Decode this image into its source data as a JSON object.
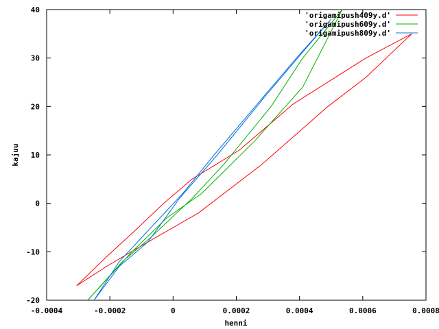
{
  "chart_data": {
    "type": "line",
    "xlabel": "henni",
    "ylabel": "kajuu",
    "xlim": [
      -0.0004,
      0.0008
    ],
    "ylim": [
      -20,
      40
    ],
    "xticks": [
      -0.0004,
      -0.0002,
      0,
      0.0002,
      0.0004,
      0.0006,
      0.0008
    ],
    "xtick_labels": [
      "-0.0004",
      "-0.0002",
      "0",
      "0.0002",
      "0.0004",
      "0.0006",
      "0.0008"
    ],
    "yticks": [
      -20,
      -10,
      0,
      10,
      20,
      30,
      40
    ],
    "ytick_labels": [
      "-20",
      "-10",
      "0",
      "10",
      "20",
      "30",
      "40"
    ],
    "grid": false,
    "legend_position": "top-right",
    "series": [
      {
        "name": "'origamipush409y.d'",
        "color": "#ff0000",
        "x": [
          -0.000305,
          -0.00021,
          -0.00011,
          -3e-05,
          6e-05,
          0.00021,
          0.00038,
          0.00061,
          0.000755,
          0.00061,
          0.00049,
          0.00028,
          8e-05,
          -8e-05,
          -0.00021,
          -0.000305
        ],
        "y": [
          -17,
          -11,
          -5,
          0,
          5,
          11,
          20.5,
          30,
          35,
          26,
          20,
          8,
          -2,
          -8,
          -13,
          -17
        ]
      },
      {
        "name": "'origamipush609y.d'",
        "color": "#00b000",
        "x": [
          -0.00027,
          -0.00016,
          -7e-05,
          6e-05,
          0.00016,
          0.00031,
          0.00041,
          0.000535,
          0.00041,
          0.00026,
          9e-05,
          -2e-05,
          -0.00013,
          -0.00027
        ],
        "y": [
          -20,
          -12,
          -7,
          1,
          8,
          20,
          30,
          40,
          24,
          13,
          2,
          -3,
          -10,
          -20
        ]
      },
      {
        "name": "'origamipush809y.d'",
        "color": "#0070e0",
        "x": [
          -0.00025,
          -0.00017,
          -8e-05,
          2e-05,
          0.00014,
          0.00029,
          0.00042,
          0.0005,
          0.00039,
          0.00026,
          0.00013,
          3e-05,
          -7e-05,
          -0.00017,
          -0.00025
        ],
        "y": [
          -20,
          -13,
          -8,
          1,
          10,
          22,
          32,
          38,
          30,
          20,
          10,
          2,
          -5,
          -12,
          -20
        ]
      }
    ]
  }
}
